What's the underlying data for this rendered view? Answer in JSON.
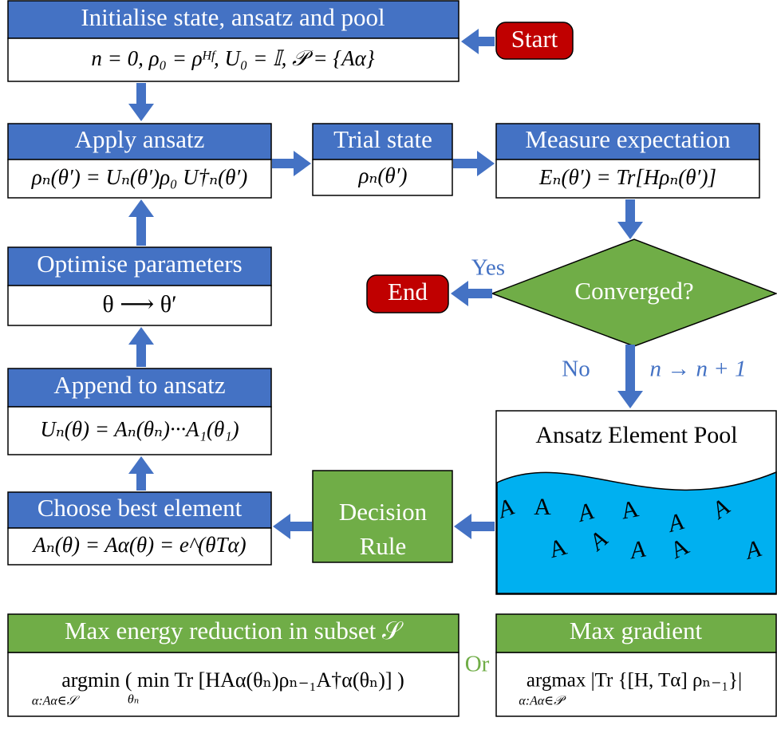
{
  "nodes": {
    "init": {
      "title": "Initialise state, ansatz and pool",
      "body": "n = 0, ρ₀ = ρᴴᶠ, U₀ = 𝕀, 𝒫 = {Aα}"
    },
    "start": {
      "label": "Start"
    },
    "apply": {
      "title": "Apply ansatz",
      "body": "ρₙ(θ′) = Uₙ(θ′)ρ₀ U†ₙ(θ′)"
    },
    "trial": {
      "title": "Trial state",
      "body": "ρₙ(θ′)"
    },
    "measure": {
      "title": "Measure expectation",
      "body": "Eₙ(θ′) = Tr[Hρₙ(θ′)]"
    },
    "converged": {
      "label": "Converged?"
    },
    "end": {
      "label": "End"
    },
    "optimise": {
      "title": "Optimise parameters",
      "body": "θ ⟶ θ′"
    },
    "append": {
      "title": "Append to ansatz",
      "body": "Uₙ(θ) = Aₙ(θₙ)···A₁(θ₁)"
    },
    "choose": {
      "title": "Choose best element",
      "body": "Aₙ(θ) = Aα(θ) = e^(θTα)"
    },
    "decision": {
      "line1": "Decision",
      "line2": "Rule"
    },
    "pool": {
      "title": "Ansatz Element Pool",
      "letters": [
        "A",
        "A",
        "A",
        "A",
        "A",
        "A",
        "A",
        "A",
        "A",
        "A",
        "A"
      ]
    }
  },
  "edges": {
    "yes": "Yes",
    "no": "No",
    "increment": "n → n + 1"
  },
  "rules": {
    "energy": {
      "title": "Max energy reduction in subset 𝒮",
      "body": "argmin  ( min Tr [HAα(θₙ)ρₙ₋₁A†α(θₙ)] )",
      "sub": "α:Aα∈𝒮",
      "sub2": "θₙ"
    },
    "or": "Or",
    "gradient": {
      "title": "Max gradient",
      "body": "argmax |Tr {[H, Tα] ρₙ₋₁}|",
      "sub": "α:Aα∈𝒫"
    }
  }
}
